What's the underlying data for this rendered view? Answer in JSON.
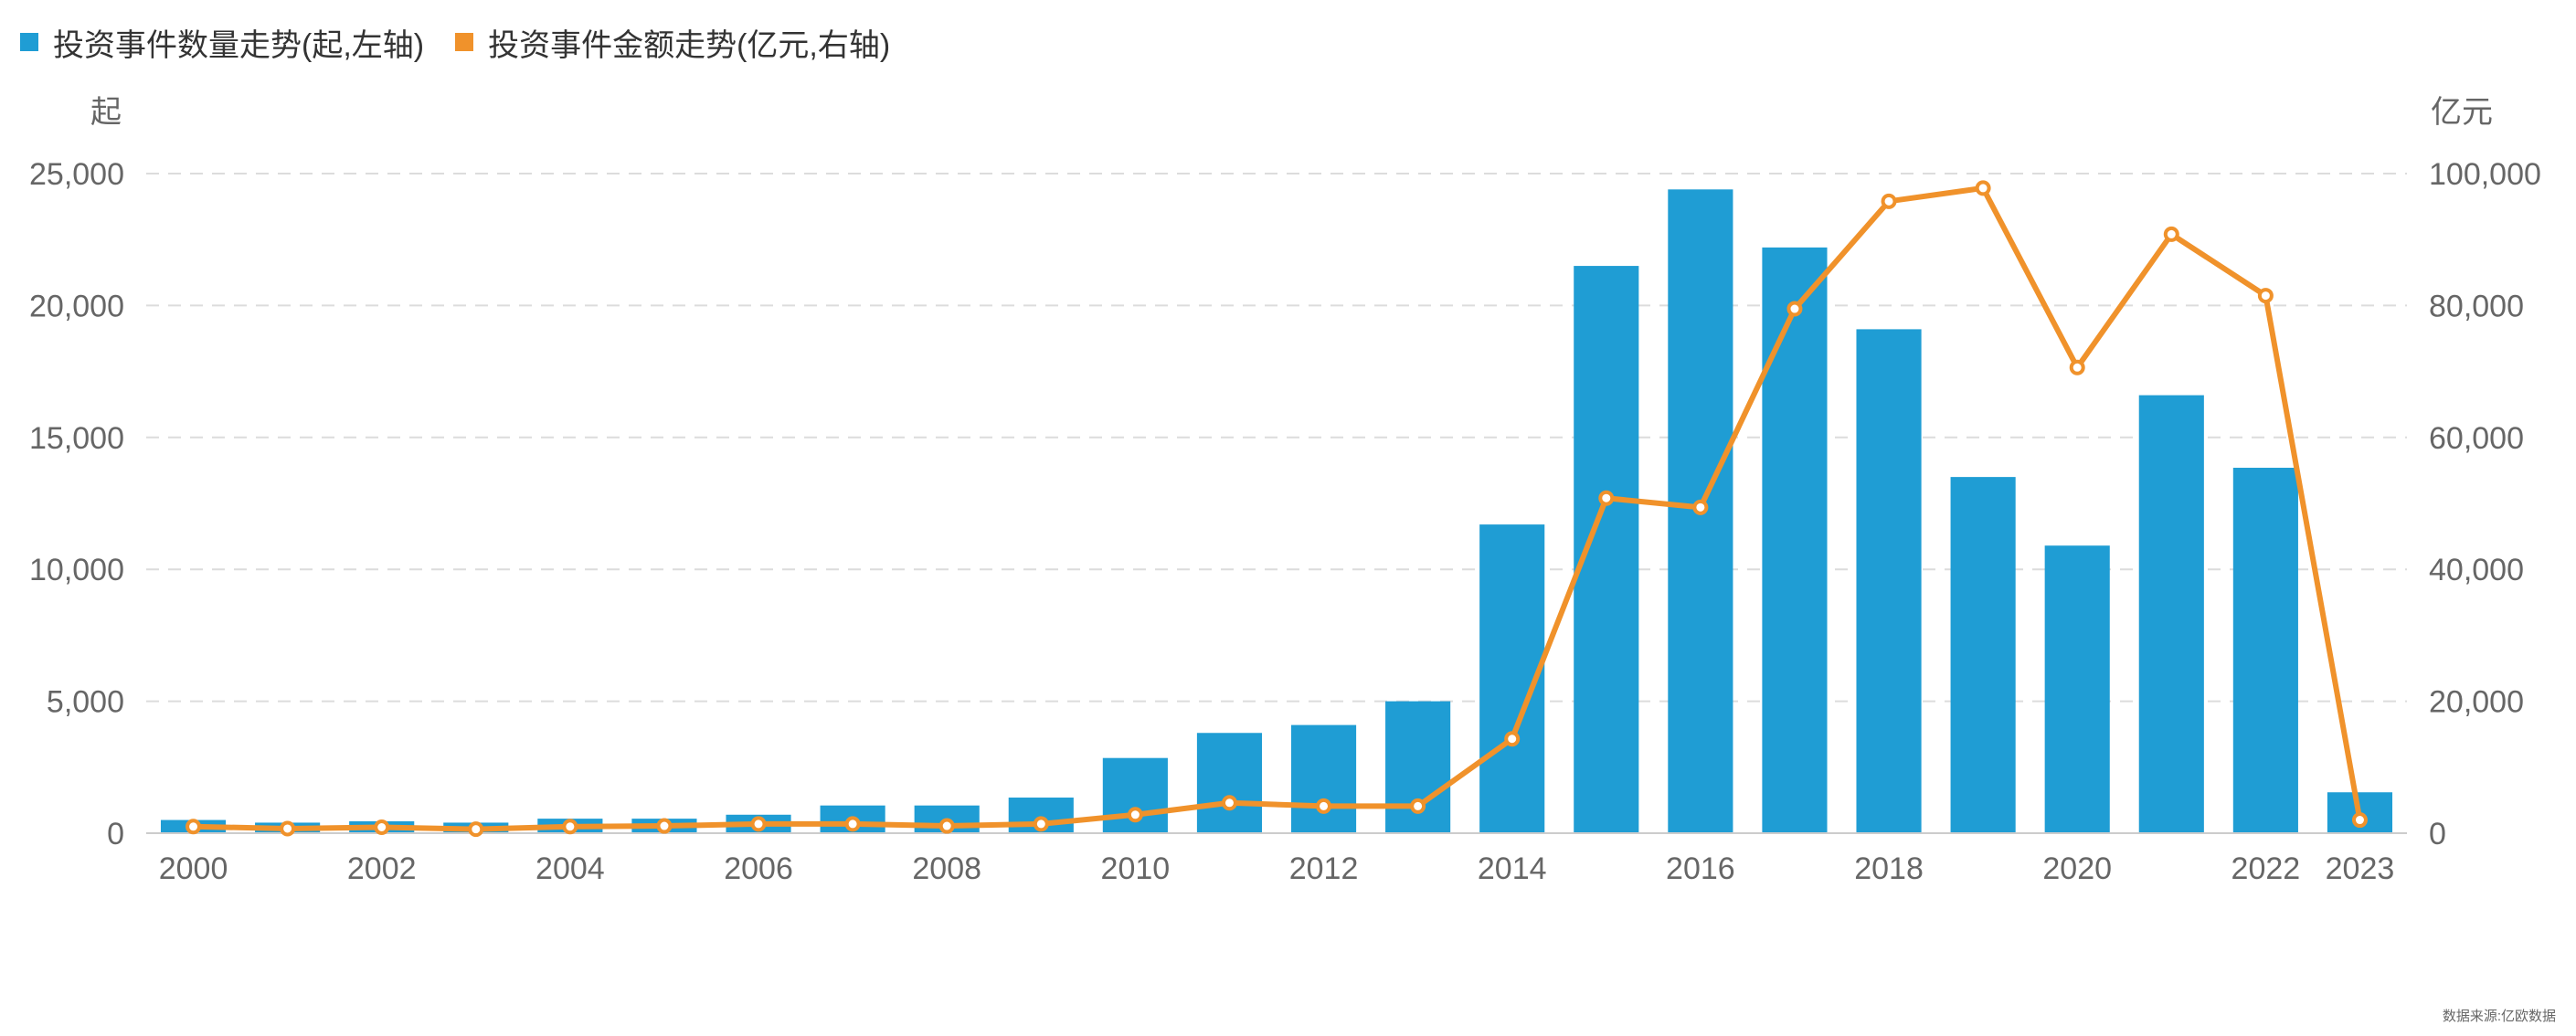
{
  "legend": {
    "items": [
      {
        "label": "投资事件数量走势(起,左轴)",
        "color": "#1f9dd4",
        "marker": "square"
      },
      {
        "label": "投资事件金额走势(亿元,右轴)",
        "color": "#f0922b",
        "marker": "square"
      }
    ]
  },
  "source": "数据来源:亿欧数据",
  "chart_data": {
    "type": "bar",
    "x": [
      2000,
      2001,
      2002,
      2003,
      2004,
      2005,
      2006,
      2007,
      2008,
      2009,
      2010,
      2011,
      2012,
      2013,
      2014,
      2015,
      2016,
      2017,
      2018,
      2019,
      2020,
      2021,
      2022,
      2023
    ],
    "x_tick_labels": [
      "2000",
      "2002",
      "2004",
      "2006",
      "2008",
      "2010",
      "2012",
      "2014",
      "2016",
      "2018",
      "2020",
      "2022",
      "2023"
    ],
    "y_left": {
      "unit": "起",
      "range": [
        0,
        25000
      ],
      "ticks": [
        "0",
        "5,000",
        "10,000",
        "15,000",
        "20,000",
        "25,000"
      ]
    },
    "y_right": {
      "unit": "亿元",
      "range": [
        0,
        100000
      ],
      "ticks": [
        "0",
        "20,000",
        "40,000",
        "60,000",
        "80,000",
        "100,000"
      ]
    },
    "grid": "horizontal dashed",
    "legend_position": "top-left",
    "series": [
      {
        "name": "投资事件数量走势(起,左轴)",
        "type": "bar",
        "axis": "left",
        "color": "#1f9dd4",
        "values": [
          500,
          400,
          450,
          400,
          550,
          550,
          700,
          1050,
          1050,
          1350,
          2850,
          3800,
          4100,
          5000,
          11700,
          21500,
          24400,
          22200,
          19100,
          13500,
          10900,
          16600,
          13850,
          1550
        ]
      },
      {
        "name": "投资事件金额走势(亿元,右轴)",
        "type": "line",
        "axis": "right",
        "color": "#f0922b",
        "values": [
          1000,
          700,
          900,
          600,
          1000,
          1100,
          1400,
          1400,
          1100,
          1400,
          2800,
          4600,
          4100,
          4100,
          14300,
          50800,
          49400,
          79500,
          95800,
          97800,
          70600,
          90800,
          81500,
          2000
        ]
      }
    ]
  }
}
